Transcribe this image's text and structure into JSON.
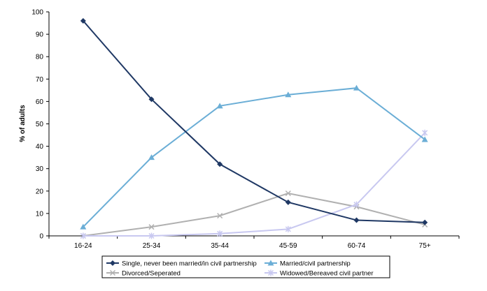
{
  "chart_data": {
    "type": "line",
    "title": "",
    "xlabel": "",
    "ylabel": "% of adults",
    "ylim": [
      0,
      100
    ],
    "yticks": [
      0,
      10,
      20,
      30,
      40,
      50,
      60,
      70,
      80,
      90,
      100
    ],
    "grid": false,
    "legend_position": "bottom",
    "categories": [
      "16-24",
      "25-34",
      "35-44",
      "45-59",
      "60-74",
      "75+"
    ],
    "series": [
      {
        "name": "Single, never been married/in civil partnership",
        "values": [
          96,
          61,
          32,
          15,
          7,
          6
        ],
        "color": "#1f3864",
        "marker": "diamond"
      },
      {
        "name": "Married/civil partnership",
        "values": [
          4,
          35,
          58,
          63,
          66,
          43
        ],
        "color": "#6baed6",
        "marker": "triangle"
      },
      {
        "name": "Divorced/Seperated",
        "values": [
          0,
          4,
          9,
          19,
          13,
          5
        ],
        "color": "#b0b0b0",
        "marker": "x"
      },
      {
        "name": "Widowed/Bereaved civil partner",
        "values": [
          0,
          0,
          1,
          3,
          14,
          46
        ],
        "color": "#c8c8f0",
        "marker": "star"
      }
    ]
  }
}
